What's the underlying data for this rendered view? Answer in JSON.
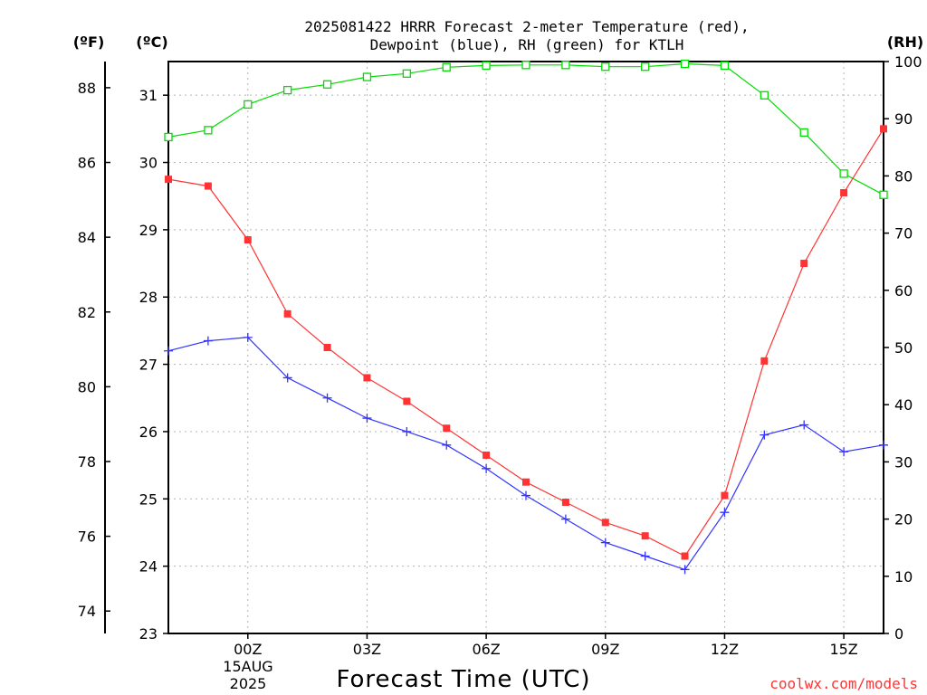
{
  "chart_data": {
    "type": "line",
    "title_lines": [
      "2025081422 HRRR Forecast 2-meter Temperature (red),",
      "Dewpoint (blue), RH (green) for KTLH"
    ],
    "xlabel": "Forecast Time (UTC)",
    "credit": "coolwx.com/models",
    "units": {
      "left_outer": "(ºF)",
      "left_inner": "(ºC)",
      "right": "(RH)"
    },
    "x_hours_utc": [
      "22Z",
      "23Z",
      "00Z",
      "01Z",
      "02Z",
      "03Z",
      "04Z",
      "05Z",
      "06Z",
      "07Z",
      "08Z",
      "09Z",
      "10Z",
      "11Z",
      "12Z",
      "13Z",
      "14Z",
      "15Z",
      "16Z"
    ],
    "x_tick_labels": [
      {
        "hour_index": 2,
        "label": "00Z"
      },
      {
        "hour_index": 5,
        "label": "03Z"
      },
      {
        "hour_index": 8,
        "label": "06Z"
      },
      {
        "hour_index": 11,
        "label": "09Z"
      },
      {
        "hour_index": 14,
        "label": "12Z"
      },
      {
        "hour_index": 17,
        "label": "15Z"
      }
    ],
    "date_label": {
      "hour_index": 2,
      "lines": [
        "15AUG",
        "2025"
      ]
    },
    "ylim_c": [
      23,
      31.5
    ],
    "y_ticks_c": [
      23,
      24,
      25,
      26,
      27,
      28,
      29,
      30,
      31
    ],
    "y_ticks_f": [
      74,
      76,
      78,
      80,
      82,
      84,
      86,
      88
    ],
    "ylim_rh": [
      0,
      100
    ],
    "y_ticks_rh": [
      0,
      10,
      20,
      30,
      40,
      50,
      60,
      70,
      80,
      90,
      100
    ],
    "series": [
      {
        "name": "Temperature",
        "color": "#ff3333",
        "marker": "filled-square",
        "axis": "celsius",
        "values": [
          29.75,
          29.65,
          28.85,
          27.75,
          27.25,
          26.8,
          26.45,
          26.05,
          25.65,
          25.25,
          24.95,
          24.65,
          24.45,
          24.15,
          25.05,
          27.05,
          28.5,
          29.55,
          30.5
        ]
      },
      {
        "name": "Dewpoint",
        "color": "#3333ff",
        "marker": "plus",
        "axis": "celsius",
        "values": [
          27.2,
          27.35,
          27.4,
          26.8,
          26.5,
          26.2,
          26.0,
          25.8,
          25.45,
          25.05,
          24.7,
          24.35,
          24.15,
          23.95,
          24.8,
          25.95,
          26.1,
          25.7,
          25.8
        ]
      },
      {
        "name": "RH",
        "color": "#00dd00",
        "marker": "open-square",
        "axis": "rh",
        "values": [
          86.8,
          88.0,
          92.5,
          95.0,
          96.0,
          97.3,
          97.9,
          99.0,
          99.3,
          99.4,
          99.4,
          99.1,
          99.1,
          99.6,
          99.3,
          94.1,
          87.6,
          80.4,
          76.7
        ]
      }
    ],
    "grid": true
  }
}
